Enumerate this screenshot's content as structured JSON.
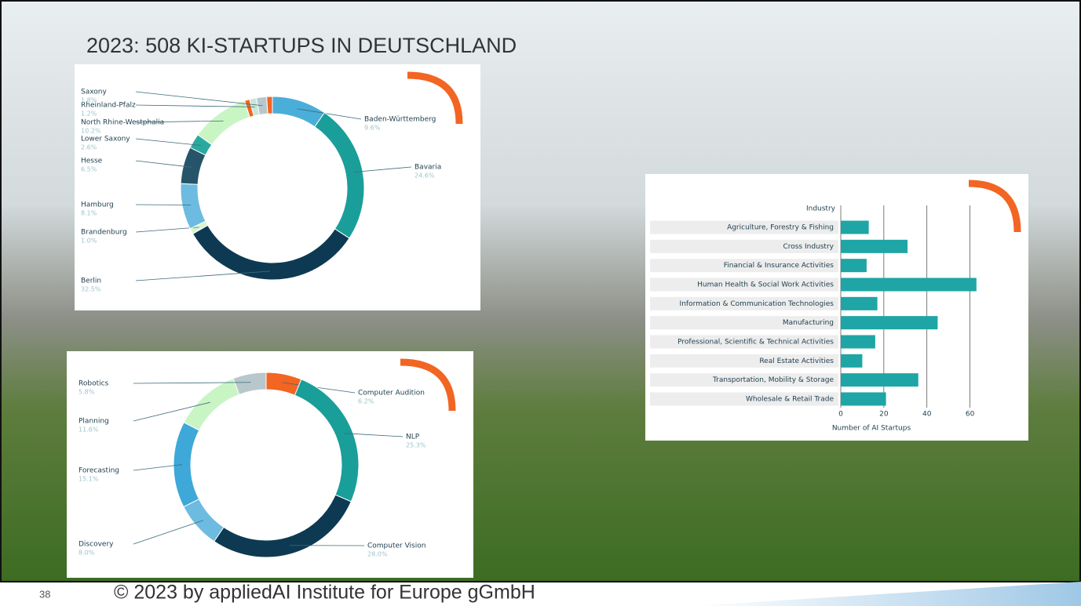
{
  "title": "2023: 508 KI-STARTUPS IN DEUTSCHLAND",
  "footer": {
    "page": "38",
    "text": "© 2023 by appliedAI Institute for Europe gGmbH"
  },
  "chart_data": [
    {
      "type": "donut",
      "categories": [
        "Baden-Württemberg",
        "Bavaria",
        "Berlin",
        "Brandenburg",
        "Hamburg",
        "Hesse",
        "Lower Saxony",
        "North Rhine-Westphalia",
        null,
        "Rheinland-Pfalz",
        "Saxony",
        null
      ],
      "values": [
        9.6,
        24.6,
        32.5,
        1.0,
        8.1,
        6.5,
        2.6,
        10.2,
        0.9,
        1.2,
        1.8,
        1.0
      ],
      "value_labels": [
        "9.6%",
        "24.6%",
        "32.5%",
        "1.0%",
        "8.1%",
        "6.5%",
        "2.6%",
        "10.2%",
        null,
        "1.2%",
        "1.8%",
        null
      ],
      "colors": [
        "#4aaed9",
        "#1a9e9a",
        "#0d3a52",
        "#d8f5d0",
        "#6dbbe0",
        "#26556a",
        "#2aa9a0",
        "#c9f5c5",
        "#f26522",
        "#c5e8d8",
        "#b8c7cc",
        "#f26522"
      ]
    },
    {
      "type": "donut",
      "categories": [
        "Computer Audition",
        "NLP",
        "Computer Vision",
        "Discovery",
        "Forecasting",
        "Planning",
        "Robotics"
      ],
      "values": [
        6.2,
        25.3,
        28.0,
        8.0,
        15.1,
        11.6,
        5.8
      ],
      "value_labels": [
        "6.2%",
        "25.3%",
        "28.0%",
        "8.0%",
        "15.1%",
        "11.6%",
        "5.8%"
      ],
      "colors": [
        "#f26522",
        "#1a9e9a",
        "#0d3a52",
        "#6dbbe0",
        "#3ea8d8",
        "#c9f5c5",
        "#b8c7cc"
      ]
    },
    {
      "type": "hbar",
      "ylabel": "Industry",
      "xlabel": "Number of AI Startups",
      "categories": [
        "Agriculture, Forestry & Fishing",
        "Cross Industry",
        "Financial & Insurance Activities",
        "Human Health & Social Work Activities",
        "Information & Communication Technologies",
        "Manufacturing",
        "Professional, Scientific & Technical Activities",
        "Real Estate Activities",
        "Transportation, Mobility & Storage",
        "Wholesale & Retail Trade"
      ],
      "values": [
        13,
        31,
        12,
        63,
        17,
        45,
        16,
        10,
        36,
        21
      ],
      "color": "#1fa5a5",
      "xlim": [
        0,
        70
      ],
      "xticks": [
        0,
        20,
        40,
        60
      ],
      "grid": true
    }
  ]
}
